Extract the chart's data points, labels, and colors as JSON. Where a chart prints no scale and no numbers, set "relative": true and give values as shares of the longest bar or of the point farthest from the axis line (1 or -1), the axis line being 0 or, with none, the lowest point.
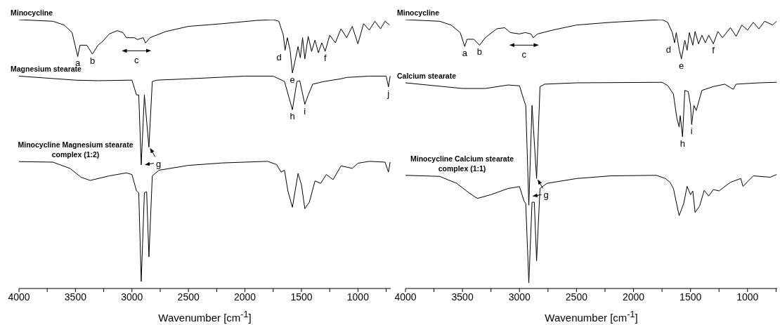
{
  "chart_data": [
    {
      "type": "line",
      "relative": true,
      "tick_labels": "x",
      "xlabel": "Wavenumber [cm$^{-1}$]",
      "xlim": [
        4000,
        710
      ],
      "xticks": [
        4000,
        {
          "value": 3750,
          "label": null
        },
        3500,
        {
          "value": 3250,
          "label": null
        },
        3000,
        {
          "value": 2750,
          "label": null
        },
        2500,
        {
          "value": 2250,
          "label": null
        },
        2000,
        {
          "value": 1750,
          "label": null
        },
        1500,
        {
          "value": 1250,
          "label": null
        },
        1000,
        {
          "value": 750,
          "label": null
        }
      ],
      "series": [
        {
          "name": "Minocycline",
          "color": "#000000",
          "x": [
            4000,
            3700,
            3600,
            3530,
            3480,
            3460,
            3400,
            3350,
            3300,
            3260,
            3200,
            3130,
            3080,
            3050,
            2980,
            2950,
            2900,
            2880,
            2840,
            2700,
            2500,
            2200,
            1900,
            1750,
            1700,
            1660,
            1645,
            1625,
            1600,
            1580,
            1560,
            1530,
            1510,
            1490,
            1470,
            1440,
            1410,
            1380,
            1350,
            1320,
            1290,
            1250,
            1200,
            1150,
            1100,
            1050,
            1000,
            950,
            900,
            850,
            800,
            760,
            720
          ],
          "values": [
            1.0,
            0.994,
            0.98,
            0.952,
            0.863,
            0.905,
            0.905,
            0.872,
            0.905,
            0.919,
            0.947,
            0.959,
            0.952,
            0.933,
            0.933,
            0.926,
            0.933,
            0.913,
            0.933,
            0.956,
            0.975,
            0.985,
            0.997,
            1.0,
            0.994,
            0.942,
            0.886,
            0.933,
            0.886,
            0.802,
            0.84,
            0.9,
            0.858,
            0.933,
            0.854,
            0.938,
            0.882,
            0.924,
            0.877,
            0.914,
            0.882,
            0.942,
            0.914,
            0.966,
            0.933,
            0.975,
            0.91,
            0.985,
            0.961,
            0.994,
            0.966,
            0.994,
            0.98
          ]
        },
        {
          "name": "Magnesium stearate",
          "color": "#000000",
          "x": [
            4000,
            3500,
            3300,
            3000,
            2960,
            2940,
            2918,
            2890,
            2850,
            2820,
            2780,
            2500,
            2000,
            1750,
            1650,
            1580,
            1540,
            1515,
            1470,
            1440,
            1400,
            1300,
            1150,
            1100,
            900,
            750,
            730,
            715
          ],
          "values": [
            0.79,
            0.775,
            0.773,
            0.775,
            0.72,
            0.72,
            0.46,
            0.72,
            0.526,
            0.77,
            0.775,
            0.78,
            0.79,
            0.79,
            0.77,
            0.665,
            0.77,
            0.773,
            0.685,
            0.72,
            0.76,
            0.77,
            0.78,
            0.785,
            0.79,
            0.79,
            0.75,
            0.79
          ]
        },
        {
          "name": "Minocycline Magnesium stearate complex (1:2)",
          "color": "#000000",
          "x": [
            4000,
            3700,
            3550,
            3450,
            3370,
            3200,
            3050,
            3000,
            2960,
            2940,
            2918,
            2890,
            2870,
            2850,
            2820,
            2760,
            2500,
            2200,
            1800,
            1720,
            1680,
            1650,
            1620,
            1580,
            1530,
            1500,
            1470,
            1430,
            1380,
            1330,
            1280,
            1220,
            1150,
            1050,
            1000,
            900,
            760,
            730,
            715
          ],
          "values": [
            0.472,
            0.47,
            0.447,
            0.414,
            0.402,
            0.419,
            0.43,
            0.424,
            0.363,
            0.356,
            0.026,
            0.356,
            0.36,
            0.118,
            0.419,
            0.44,
            0.458,
            0.467,
            0.473,
            0.461,
            0.433,
            0.44,
            0.363,
            0.302,
            0.428,
            0.386,
            0.297,
            0.321,
            0.4,
            0.391,
            0.424,
            0.405,
            0.456,
            0.447,
            0.466,
            0.473,
            0.47,
            0.433,
            0.47
          ]
        }
      ],
      "annotations": [
        {
          "text": "a",
          "x": 3480,
          "y": 0.863
        },
        {
          "text": "b",
          "x": 3350,
          "y": 0.872
        },
        {
          "text": "c",
          "x": 2960,
          "y": 0.926
        },
        {
          "text": "d",
          "x": 1645,
          "y": 0.886
        },
        {
          "text": "e",
          "x": 1580,
          "y": 0.802
        },
        {
          "text": "f",
          "x": 1290,
          "y": 0.882
        },
        {
          "text": "g",
          "x": 2850,
          "y": 0.526
        },
        {
          "text": "h",
          "x": 1580,
          "y": 0.665
        },
        {
          "text": "i",
          "x": 1470,
          "y": 0.685
        },
        {
          "text": "j",
          "x": 730,
          "y": 0.75
        }
      ]
    },
    {
      "type": "line",
      "relative": true,
      "tick_labels": "x",
      "xlabel": "Wavenumber [cm$^{-1}$]",
      "xlim": [
        4000,
        740
      ],
      "xticks": [
        4000,
        {
          "value": 3750,
          "label": null
        },
        3500,
        {
          "value": 3250,
          "label": null
        },
        3000,
        {
          "value": 2750,
          "label": null
        },
        2500,
        {
          "value": 2250,
          "label": null
        },
        2000,
        {
          "value": 1750,
          "label": null
        },
        1500,
        {
          "value": 1250,
          "label": null
        },
        1000,
        {
          "value": 750,
          "label": null
        }
      ],
      "series": [
        {
          "name": "Minocycline",
          "color": "#000000",
          "x": [
            4000,
            3700,
            3600,
            3520,
            3480,
            3460,
            3400,
            3350,
            3300,
            3200,
            3130,
            3080,
            3000,
            2950,
            2900,
            2880,
            2840,
            2700,
            2500,
            2200,
            1900,
            1750,
            1700,
            1660,
            1640,
            1625,
            1600,
            1580,
            1550,
            1530,
            1510,
            1480,
            1460,
            1430,
            1400,
            1370,
            1340,
            1300,
            1260,
            1220,
            1150,
            1100,
            1050,
            1000,
            950,
            900,
            850,
            780,
            745
          ],
          "values": [
            1.0,
            0.994,
            0.98,
            0.952,
            0.9,
            0.927,
            0.927,
            0.905,
            0.933,
            0.966,
            0.97,
            0.952,
            0.947,
            0.952,
            0.947,
            0.933,
            0.947,
            0.962,
            0.98,
            0.99,
            0.997,
            1.0,
            0.99,
            0.952,
            0.914,
            0.952,
            0.89,
            0.854,
            0.924,
            0.886,
            0.952,
            0.905,
            0.956,
            0.91,
            0.942,
            0.914,
            0.942,
            0.91,
            0.956,
            0.933,
            0.97,
            0.938,
            0.98,
            0.961,
            0.99,
            0.966,
            0.994,
            0.98,
            0.994
          ]
        },
        {
          "name": "Calcium stearate",
          "color": "#000000",
          "x": [
            4000,
            3500,
            3300,
            3100,
            3000,
            2960,
            2945,
            2918,
            2890,
            2850,
            2820,
            2780,
            2500,
            1750,
            1700,
            1650,
            1620,
            1600,
            1590,
            1570,
            1550,
            1520,
            1500,
            1490,
            1470,
            1450,
            1400,
            1300,
            1200,
            1125,
            1100,
            900,
            745
          ],
          "values": [
            0.765,
            0.744,
            0.744,
            0.757,
            0.754,
            0.699,
            0.681,
            0.31,
            0.681,
            0.409,
            0.751,
            0.76,
            0.765,
            0.767,
            0.755,
            0.723,
            0.634,
            0.601,
            0.643,
            0.564,
            0.737,
            0.732,
            0.681,
            0.61,
            0.681,
            0.662,
            0.737,
            0.751,
            0.76,
            0.741,
            0.76,
            0.765,
            0.767
          ]
        },
        {
          "name": "Minocycline Calcium stearate complex (1:1)",
          "color": "#000000",
          "x": [
            4000,
            3700,
            3550,
            3450,
            3370,
            3250,
            3100,
            3000,
            2960,
            2945,
            2918,
            2890,
            2870,
            2850,
            2820,
            2760,
            2500,
            2200,
            1800,
            1720,
            1680,
            1650,
            1600,
            1560,
            1530,
            1500,
            1480,
            1460,
            1420,
            1380,
            1340,
            1300,
            1250,
            1150,
            1060,
            1040,
            950,
            800,
            745
          ],
          "values": [
            0.421,
            0.417,
            0.391,
            0.358,
            0.335,
            0.349,
            0.372,
            0.379,
            0.325,
            0.316,
            0.021,
            0.321,
            0.321,
            0.103,
            0.372,
            0.391,
            0.409,
            0.419,
            0.421,
            0.409,
            0.395,
            0.372,
            0.271,
            0.316,
            0.38,
            0.349,
            0.363,
            0.283,
            0.307,
            0.365,
            0.344,
            0.368,
            0.363,
            0.395,
            0.409,
            0.38,
            0.419,
            0.414,
            0.424
          ]
        }
      ],
      "annotations": [
        {
          "text": "a",
          "x": 3480,
          "y": 0.9
        },
        {
          "text": "b",
          "x": 3350,
          "y": 0.905
        },
        {
          "text": "c",
          "x": 2960,
          "y": 0.947
        },
        {
          "text": "d",
          "x": 1640,
          "y": 0.914
        },
        {
          "text": "e",
          "x": 1580,
          "y": 0.854
        },
        {
          "text": "f",
          "x": 1300,
          "y": 0.91
        },
        {
          "text": "g",
          "x": 2850,
          "y": 0.409
        },
        {
          "text": "h",
          "x": 1570,
          "y": 0.564
        },
        {
          "text": "i",
          "x": 1490,
          "y": 0.61
        }
      ]
    }
  ]
}
